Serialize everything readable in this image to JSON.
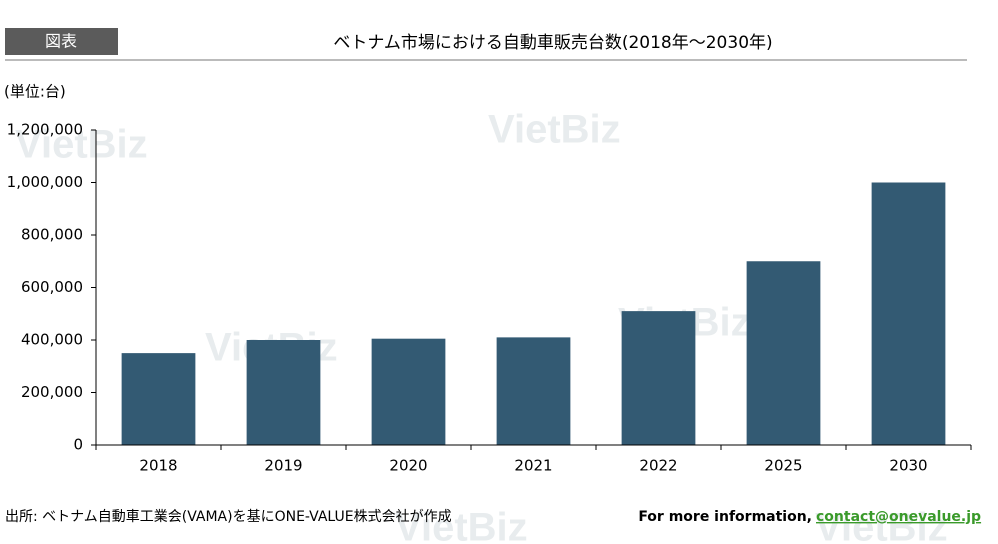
{
  "label": "図表",
  "unit_note": "(単位:台)",
  "source": "出所: ベトナム自動車工業会(VAMA)を基にONE-VALUE株式会社が作成",
  "info_text": "For more information,",
  "contact": "contact@onevalue.jp",
  "watermark": "VietBiz",
  "chart_data": {
    "type": "bar",
    "title": "ベトナム市場における自動車販売台数(2018年～2030年)",
    "categories": [
      "2018",
      "2019",
      "2020",
      "2021",
      "2022",
      "2025",
      "2030"
    ],
    "values": [
      350000,
      400000,
      405000,
      410000,
      510000,
      700000,
      1000000
    ],
    "color": "#335a73",
    "ylim": [
      0,
      1200000
    ],
    "yticks": [
      0,
      {
        "value": 200000,
        "label": "200,000"
      },
      {
        "value": 400000,
        "label": "400,000"
      },
      {
        "value": 600000,
        "label": "600,000"
      },
      {
        "value": 800000,
        "label": "800,000"
      },
      {
        "value": 1000000,
        "label": "1,000,000"
      },
      {
        "value": 1200000,
        "label": "1,200,000"
      }
    ],
    "grid": false
  }
}
